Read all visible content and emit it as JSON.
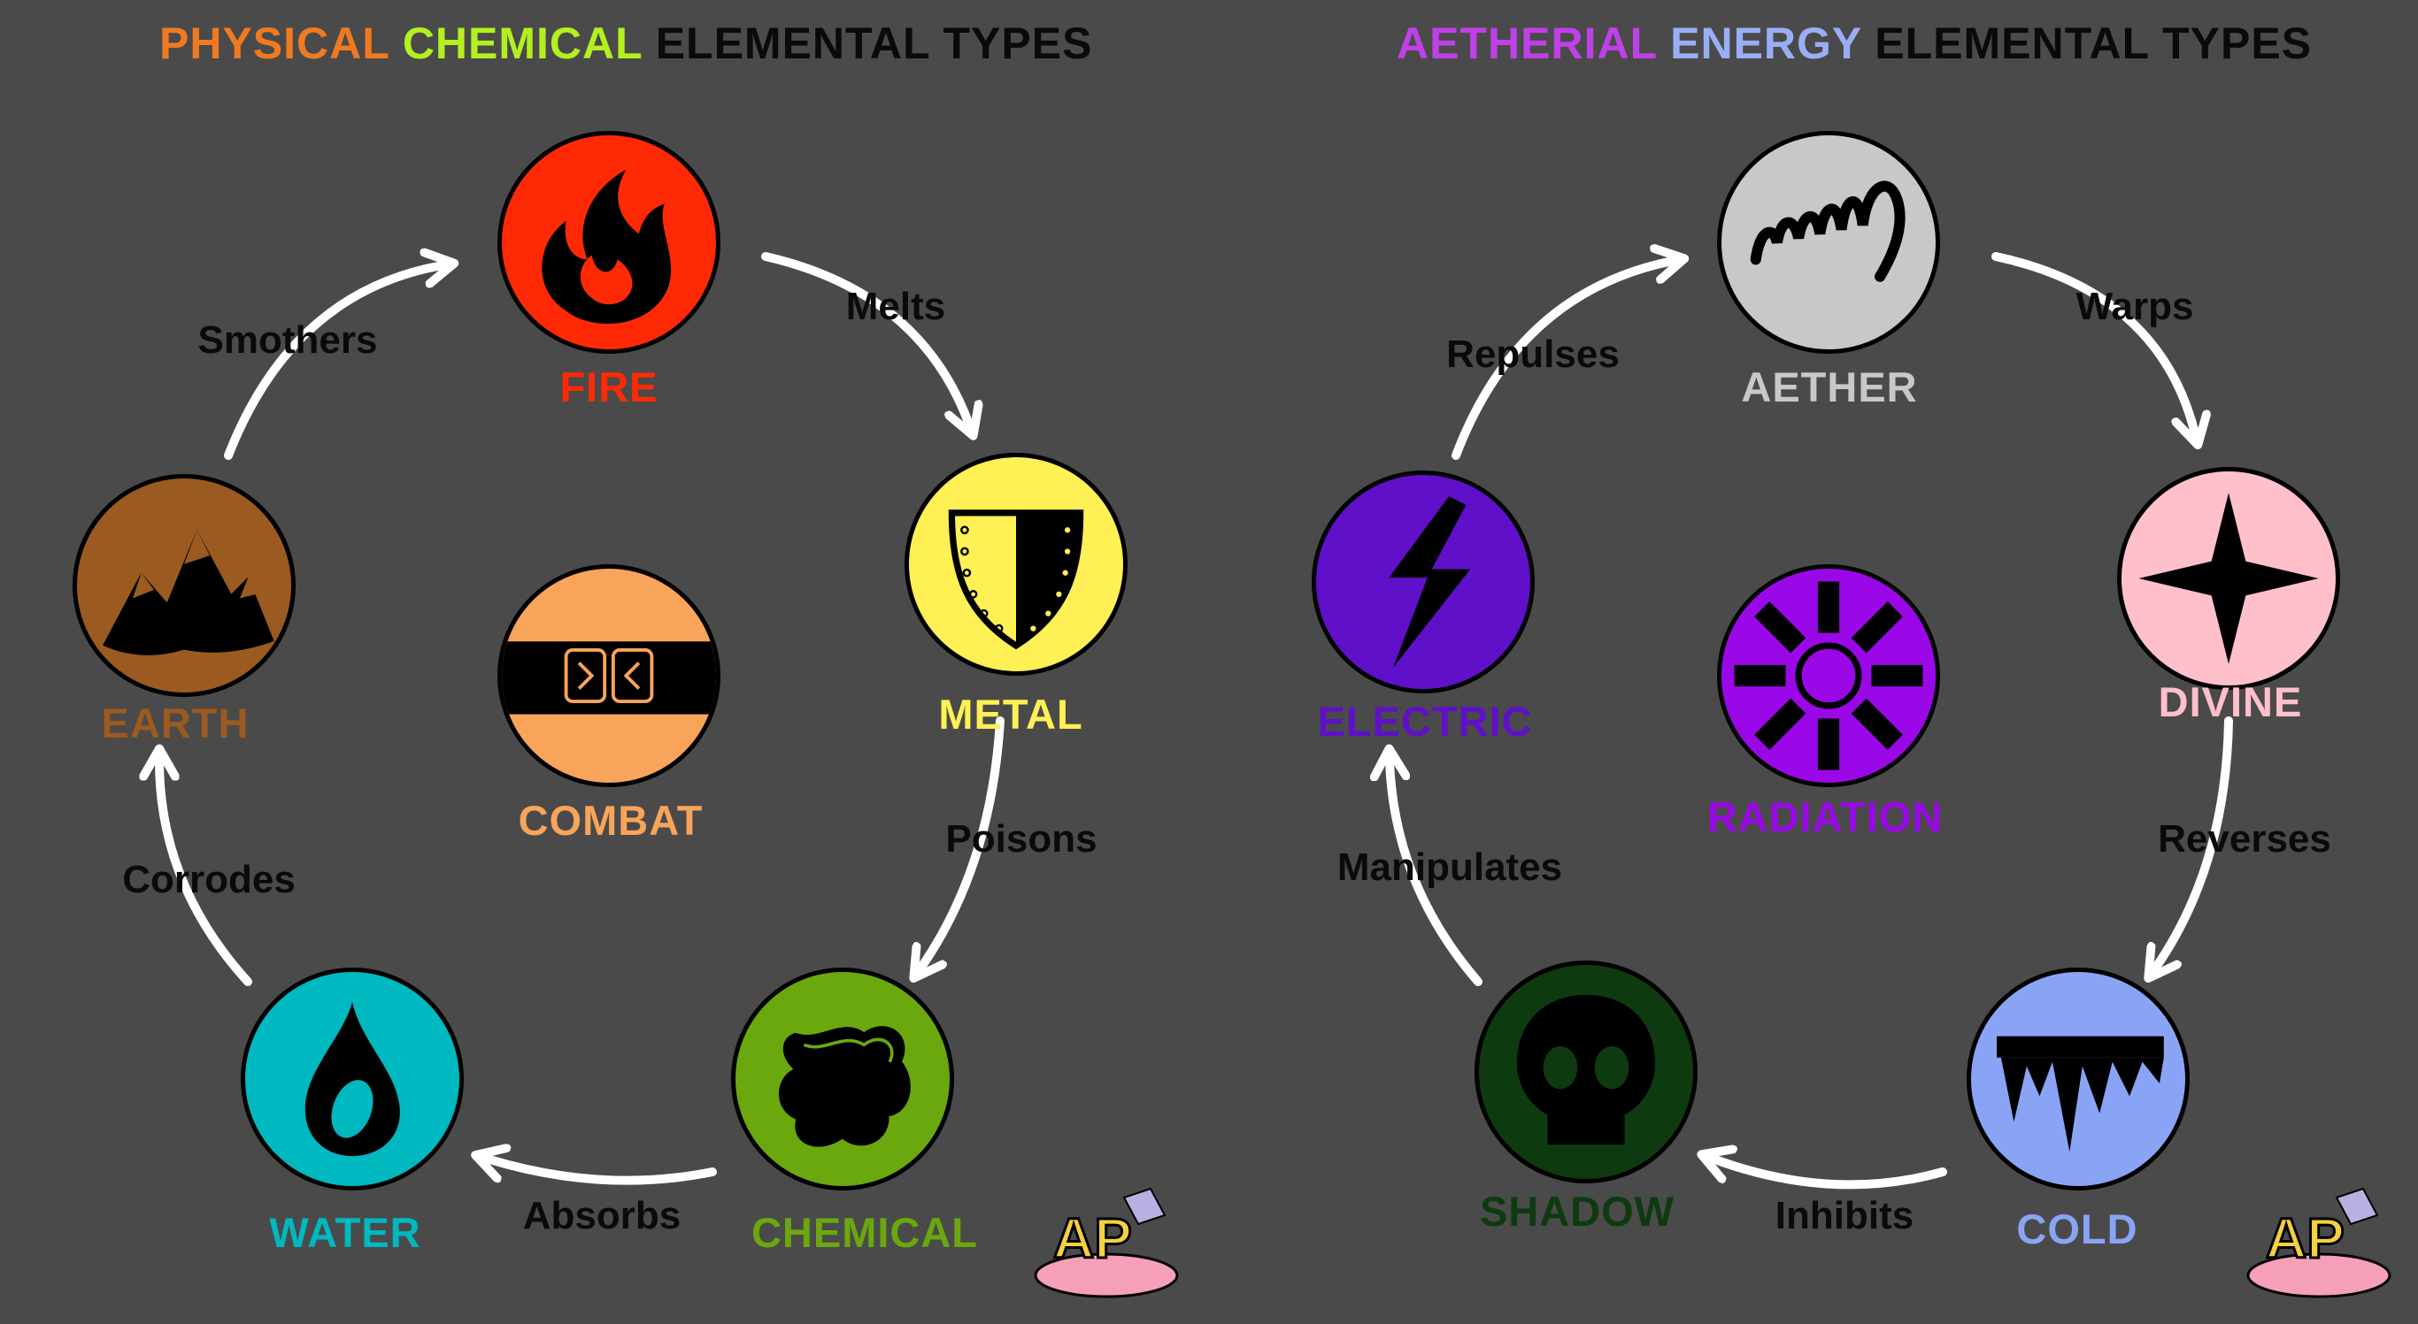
{
  "titles": {
    "left": {
      "w1": "PHYSICAL",
      "w2": "CHEMICAL",
      "w3": "ELEMENTAL TYPES"
    },
    "right": {
      "w1": "AETHERIAL",
      "w2": "ENERGY",
      "w3": "ELEMENTAL TYPES"
    }
  },
  "colors": {
    "physical": "#f07a20",
    "chemical_word": "#b3f020",
    "title_dark": "#0a0a0a",
    "aetherial": "#c040e8",
    "energy": "#9aaef5",
    "fire": "#ff2a05",
    "metal": "#fff055",
    "chemical": "#6aa80e",
    "water": "#00b8c0",
    "earth": "#9a5a20",
    "combat": "#f8a45a",
    "aether": "#c8c8c8",
    "divine": "#ffc0cc",
    "cold": "#8aa4f5",
    "shadow": "#0e3a10",
    "electric": "#5f10c8",
    "radiation": "#9a08e8"
  },
  "elements": {
    "fire": {
      "label": "FIRE",
      "icon": "flame-icon"
    },
    "metal": {
      "label": "METAL",
      "icon": "shield-icon"
    },
    "chemical": {
      "label": "CHEMICAL",
      "icon": "blob-icon"
    },
    "water": {
      "label": "WATER",
      "icon": "droplet-icon"
    },
    "earth": {
      "label": "EARTH",
      "icon": "mountains-icon"
    },
    "combat": {
      "label": "COMBAT",
      "icon": "fists-icon"
    },
    "aether": {
      "label": "AETHER",
      "icon": "coil-icon"
    },
    "divine": {
      "label": "DIVINE",
      "icon": "star-icon"
    },
    "cold": {
      "label": "COLD",
      "icon": "icicles-icon"
    },
    "shadow": {
      "label": "SHADOW",
      "icon": "skull-icon"
    },
    "electric": {
      "label": "ELECTRIC",
      "icon": "lightning-icon"
    },
    "radiation": {
      "label": "RADIATION",
      "icon": "radiation-icon"
    }
  },
  "relations": {
    "melts": "Melts",
    "poisons": "Poisons",
    "absorbs": "Absorbs",
    "corrodes": "Corrodes",
    "smothers": "Smothers",
    "warps": "Warps",
    "reverses": "Reverses",
    "inhibits": "Inhibits",
    "manipulates": "Manipulates",
    "repulses": "Repulses"
  },
  "logo": {
    "text": "AP"
  }
}
